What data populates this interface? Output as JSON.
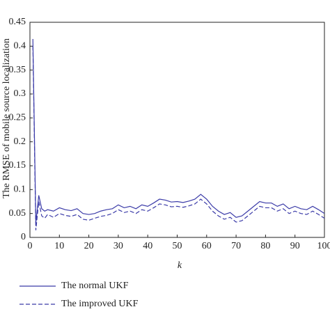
{
  "chart_data": {
    "type": "line",
    "x_label": "k",
    "y_label": "The RMSE of mobile source localization",
    "x": [
      1,
      2,
      3,
      4,
      5,
      6,
      8,
      10,
      12,
      14,
      16,
      18,
      20,
      22,
      24,
      26,
      28,
      30,
      32,
      34,
      36,
      38,
      40,
      42,
      44,
      46,
      48,
      50,
      52,
      54,
      56,
      58,
      60,
      62,
      64,
      66,
      68,
      70,
      72,
      74,
      76,
      78,
      80,
      82,
      84,
      86,
      88,
      90,
      92,
      94,
      96,
      98,
      100
    ],
    "series": [
      {
        "name": "The normal UKF",
        "color": "#3b3ba8",
        "linestyle": "solid",
        "values": [
          0.415,
          0.03,
          0.088,
          0.06,
          0.055,
          0.058,
          0.055,
          0.062,
          0.058,
          0.056,
          0.06,
          0.05,
          0.048,
          0.05,
          0.055,
          0.058,
          0.06,
          0.068,
          0.062,
          0.065,
          0.06,
          0.068,
          0.065,
          0.072,
          0.08,
          0.078,
          0.074,
          0.075,
          0.073,
          0.076,
          0.08,
          0.09,
          0.08,
          0.065,
          0.055,
          0.048,
          0.052,
          0.042,
          0.045,
          0.055,
          0.065,
          0.075,
          0.072,
          0.072,
          0.065,
          0.07,
          0.06,
          0.065,
          0.06,
          0.058,
          0.065,
          0.058,
          0.05
        ]
      },
      {
        "name": "The improved UKF",
        "color": "#3b3ba8",
        "linestyle": "dashed",
        "values": [
          0.4,
          0.015,
          0.075,
          0.045,
          0.04,
          0.048,
          0.042,
          0.05,
          0.046,
          0.044,
          0.048,
          0.038,
          0.036,
          0.04,
          0.044,
          0.046,
          0.05,
          0.058,
          0.052,
          0.055,
          0.05,
          0.058,
          0.055,
          0.062,
          0.07,
          0.068,
          0.064,
          0.065,
          0.063,
          0.066,
          0.07,
          0.08,
          0.07,
          0.055,
          0.045,
          0.038,
          0.042,
          0.032,
          0.035,
          0.045,
          0.055,
          0.065,
          0.062,
          0.062,
          0.055,
          0.06,
          0.05,
          0.055,
          0.05,
          0.048,
          0.055,
          0.048,
          0.04
        ]
      }
    ],
    "xlim": [
      0,
      100
    ],
    "xticks": [
      0,
      10,
      20,
      30,
      40,
      50,
      60,
      70,
      80,
      90,
      100
    ],
    "ylim": [
      0,
      0.45
    ],
    "yticks": [
      0,
      0.05,
      0.1,
      0.15,
      0.2,
      0.25,
      0.3,
      0.35,
      0.4,
      0.45
    ],
    "grid": false,
    "legend": "bottom-left"
  }
}
